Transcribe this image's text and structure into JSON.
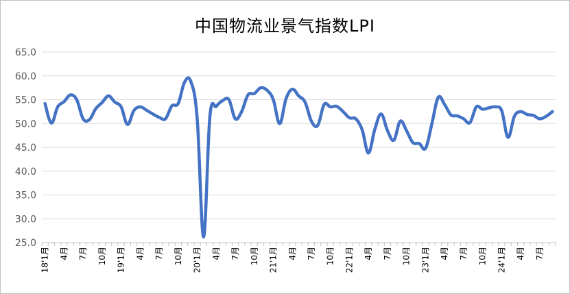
{
  "chart_data": {
    "type": "line",
    "title": "中国物流业景气指数LPI",
    "xlabel": "",
    "ylabel": "",
    "ylim": [
      25.0,
      65.0
    ],
    "yticks": [
      "25.0",
      "30.0",
      "35.0",
      "40.0",
      "45.0",
      "50.0",
      "55.0",
      "60.0",
      "65.0"
    ],
    "grid": true,
    "line_color": "#4472C4",
    "x_ticks": [
      "18'1月",
      "4月",
      "7月",
      "10月",
      "19'1月",
      "4月",
      "7月",
      "10月",
      "20'1月",
      "4月",
      "7月",
      "10月",
      "21'1月",
      "4月",
      "7月",
      "10月",
      "22'1月",
      "4月",
      "7月",
      "10月",
      "23'1月",
      "4月",
      "7月",
      "10月",
      "24'1月",
      "4月",
      "7月"
    ],
    "x": [
      "2018-01",
      "2018-02",
      "2018-03",
      "2018-04",
      "2018-05",
      "2018-06",
      "2018-07",
      "2018-08",
      "2018-09",
      "2018-10",
      "2018-11",
      "2018-12",
      "2019-01",
      "2019-02",
      "2019-03",
      "2019-04",
      "2019-05",
      "2019-06",
      "2019-07",
      "2019-08",
      "2019-09",
      "2019-10",
      "2019-11",
      "2019-12",
      "2020-01",
      "2020-02",
      "2020-03",
      "2020-04",
      "2020-05",
      "2020-06",
      "2020-07",
      "2020-08",
      "2020-09",
      "2020-10",
      "2020-11",
      "2020-12",
      "2021-01",
      "2021-02",
      "2021-03",
      "2021-04",
      "2021-05",
      "2021-06",
      "2021-07",
      "2021-08",
      "2021-09",
      "2021-10",
      "2021-11",
      "2021-12",
      "2022-01",
      "2022-02",
      "2022-03",
      "2022-04",
      "2022-05",
      "2022-06",
      "2022-07",
      "2022-08",
      "2022-09",
      "2022-10",
      "2022-11",
      "2022-12",
      "2023-01",
      "2023-02",
      "2023-03",
      "2023-04",
      "2023-05",
      "2023-06",
      "2023-07",
      "2023-08",
      "2023-09",
      "2023-10",
      "2023-11",
      "2023-12",
      "2024-01",
      "2024-02",
      "2024-03",
      "2024-04",
      "2024-05",
      "2024-06",
      "2024-07",
      "2024-08",
      "2024-09"
    ],
    "series": [
      {
        "values": [
          54.2,
          50.1,
          53.5,
          54.6,
          56.0,
          55.0,
          51.0,
          50.8,
          53.1,
          54.4,
          55.8,
          54.5,
          53.5,
          49.8,
          52.7,
          53.5,
          52.8,
          52.0,
          51.3,
          51.0,
          53.7,
          54.2,
          58.7,
          58.8,
          51.0,
          26.2,
          51.5,
          53.6,
          54.8,
          55.0,
          51.0,
          52.5,
          56.0,
          56.3,
          57.5,
          57.0,
          55.0,
          50.0,
          55.2,
          57.2,
          55.8,
          54.5,
          50.5,
          49.6,
          54.0,
          53.5,
          53.6,
          52.5,
          51.2,
          51.0,
          48.7,
          43.8,
          48.8,
          52.0,
          48.5,
          46.5,
          50.5,
          48.5,
          46.0,
          45.8,
          44.8,
          50.0,
          55.5,
          54.0,
          51.8,
          51.6,
          51.0,
          50.2,
          53.5,
          53.0,
          53.3,
          53.5,
          52.7,
          47.1,
          51.5,
          52.5,
          51.9,
          51.7,
          51.0,
          51.5,
          52.5
        ]
      }
    ]
  }
}
